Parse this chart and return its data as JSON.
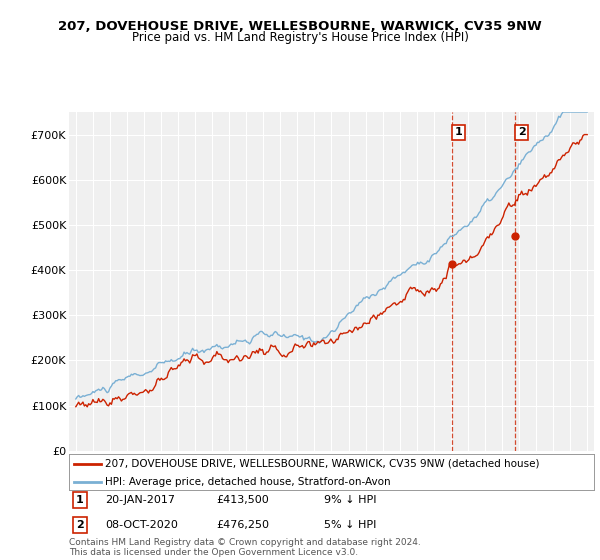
{
  "title_line1": "207, DOVEHOUSE DRIVE, WELLESBOURNE, WARWICK, CV35 9NW",
  "title_line2": "Price paid vs. HM Land Registry's House Price Index (HPI)",
  "legend_line1": "207, DOVEHOUSE DRIVE, WELLESBOURNE, WARWICK, CV35 9NW (detached house)",
  "legend_line2": "HPI: Average price, detached house, Stratford-on-Avon",
  "footer": "Contains HM Land Registry data © Crown copyright and database right 2024.\nThis data is licensed under the Open Government Licence v3.0.",
  "annotation1_label": "1",
  "annotation1_date": "20-JAN-2017",
  "annotation1_price": "£413,500",
  "annotation1_hpi": "9% ↓ HPI",
  "annotation2_label": "2",
  "annotation2_date": "08-OCT-2020",
  "annotation2_price": "£476,250",
  "annotation2_hpi": "5% ↓ HPI",
  "sale1_year": 2017.054,
  "sale2_year": 2020.773,
  "sale1_price": 413500,
  "sale2_price": 476250,
  "hpi_color": "#7ab0d4",
  "price_color": "#cc2200",
  "annotation_color": "#cc2200",
  "background_color": "#ffffff",
  "plot_bg_color": "#f0f0f0",
  "grid_color": "#ffffff",
  "ylim": [
    0,
    750000
  ],
  "yticks": [
    0,
    100000,
    200000,
    300000,
    400000,
    500000,
    600000,
    700000
  ],
  "start_year": 1995,
  "end_year": 2025
}
